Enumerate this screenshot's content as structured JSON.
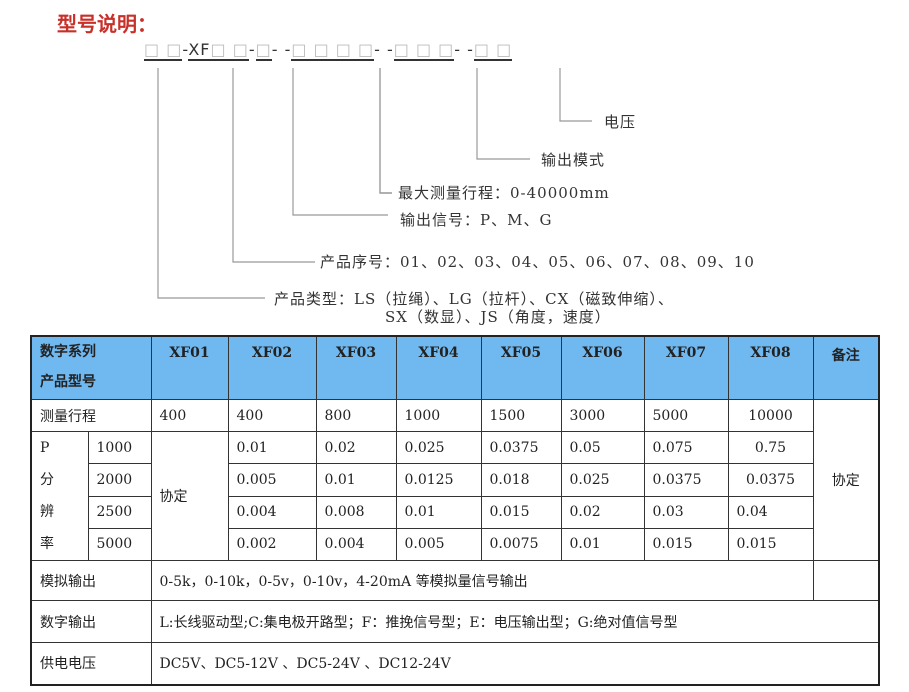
{
  "heading": "型号说明：",
  "code": {
    "g1": "□ □",
    "sep1": "-",
    "g2_prefix": "XF",
    "g2": "□ □",
    "sep2": "-",
    "g3": "□",
    "sep3": "- -",
    "g4": "□ □ □ □",
    "sep4": "- -",
    "g5": "□ □ □",
    "sep5": "- -",
    "g6": "□ □"
  },
  "legend": {
    "voltage": "电压",
    "output_mode": "输出模式",
    "max_range": "最大测量行程：0-40000mm",
    "output_signal": "输出信号：P、M、G",
    "serial": "产品序号：01、02、03、04、05、06、07、08、09、10",
    "type_line1": "产品类型：LS（拉绳）、LG（拉杆）、CX（磁致伸缩）、",
    "type_line2": "SX（数显）、JS（角度，速度）"
  },
  "table": {
    "header_label1": "数字系列",
    "header_label2": "产品型号",
    "models": [
      "XF01",
      "XF02",
      "XF03",
      "XF04",
      "XF05",
      "XF06",
      "XF07",
      "XF08"
    ],
    "remark_header": "备注",
    "range_label": "测量行程",
    "ranges": [
      "400",
      "400",
      "800",
      "1000",
      "1500",
      "3000",
      "5000",
      "10000"
    ],
    "resolution_label": [
      "P",
      "分",
      "辨",
      "率"
    ],
    "xf01_resolution": "协定",
    "remark_value": "协定",
    "resolution_rows": [
      {
        "p": "1000",
        "values": [
          "0.01",
          "0.02",
          "0.025",
          "0.0375",
          "0.05",
          "0.075",
          "0.75"
        ]
      },
      {
        "p": "2000",
        "values": [
          "0.005",
          "0.01",
          "0.0125",
          "0.018",
          "0.025",
          "0.0375",
          "0.0375"
        ]
      },
      {
        "p": "2500",
        "values": [
          "0.004",
          "0.008",
          "0.01",
          "0.015",
          "0.02",
          "0.03",
          "0.04"
        ]
      },
      {
        "p": "5000",
        "values": [
          "0.002",
          "0.004",
          "0.005",
          "0.0075",
          "0.01",
          "0.015",
          "0.015"
        ]
      }
    ],
    "analog_label": "模拟输出",
    "analog_value": "0-5k，0-10k，0-5v，0-10v，4-20mA 等模拟量信号输出",
    "digital_label": "数字输出",
    "digital_value": "L:长线驱动型;C:集电极开路型；F：推挽信号型；E：电压输出型；G:绝对值信号型",
    "power_label": "供电电压",
    "power_value": "DC5V、DC5-12V 、DC5-24V 、DC12-24V"
  },
  "colors": {
    "heading": "#c8302a",
    "header_bg": "#70b8f0"
  }
}
